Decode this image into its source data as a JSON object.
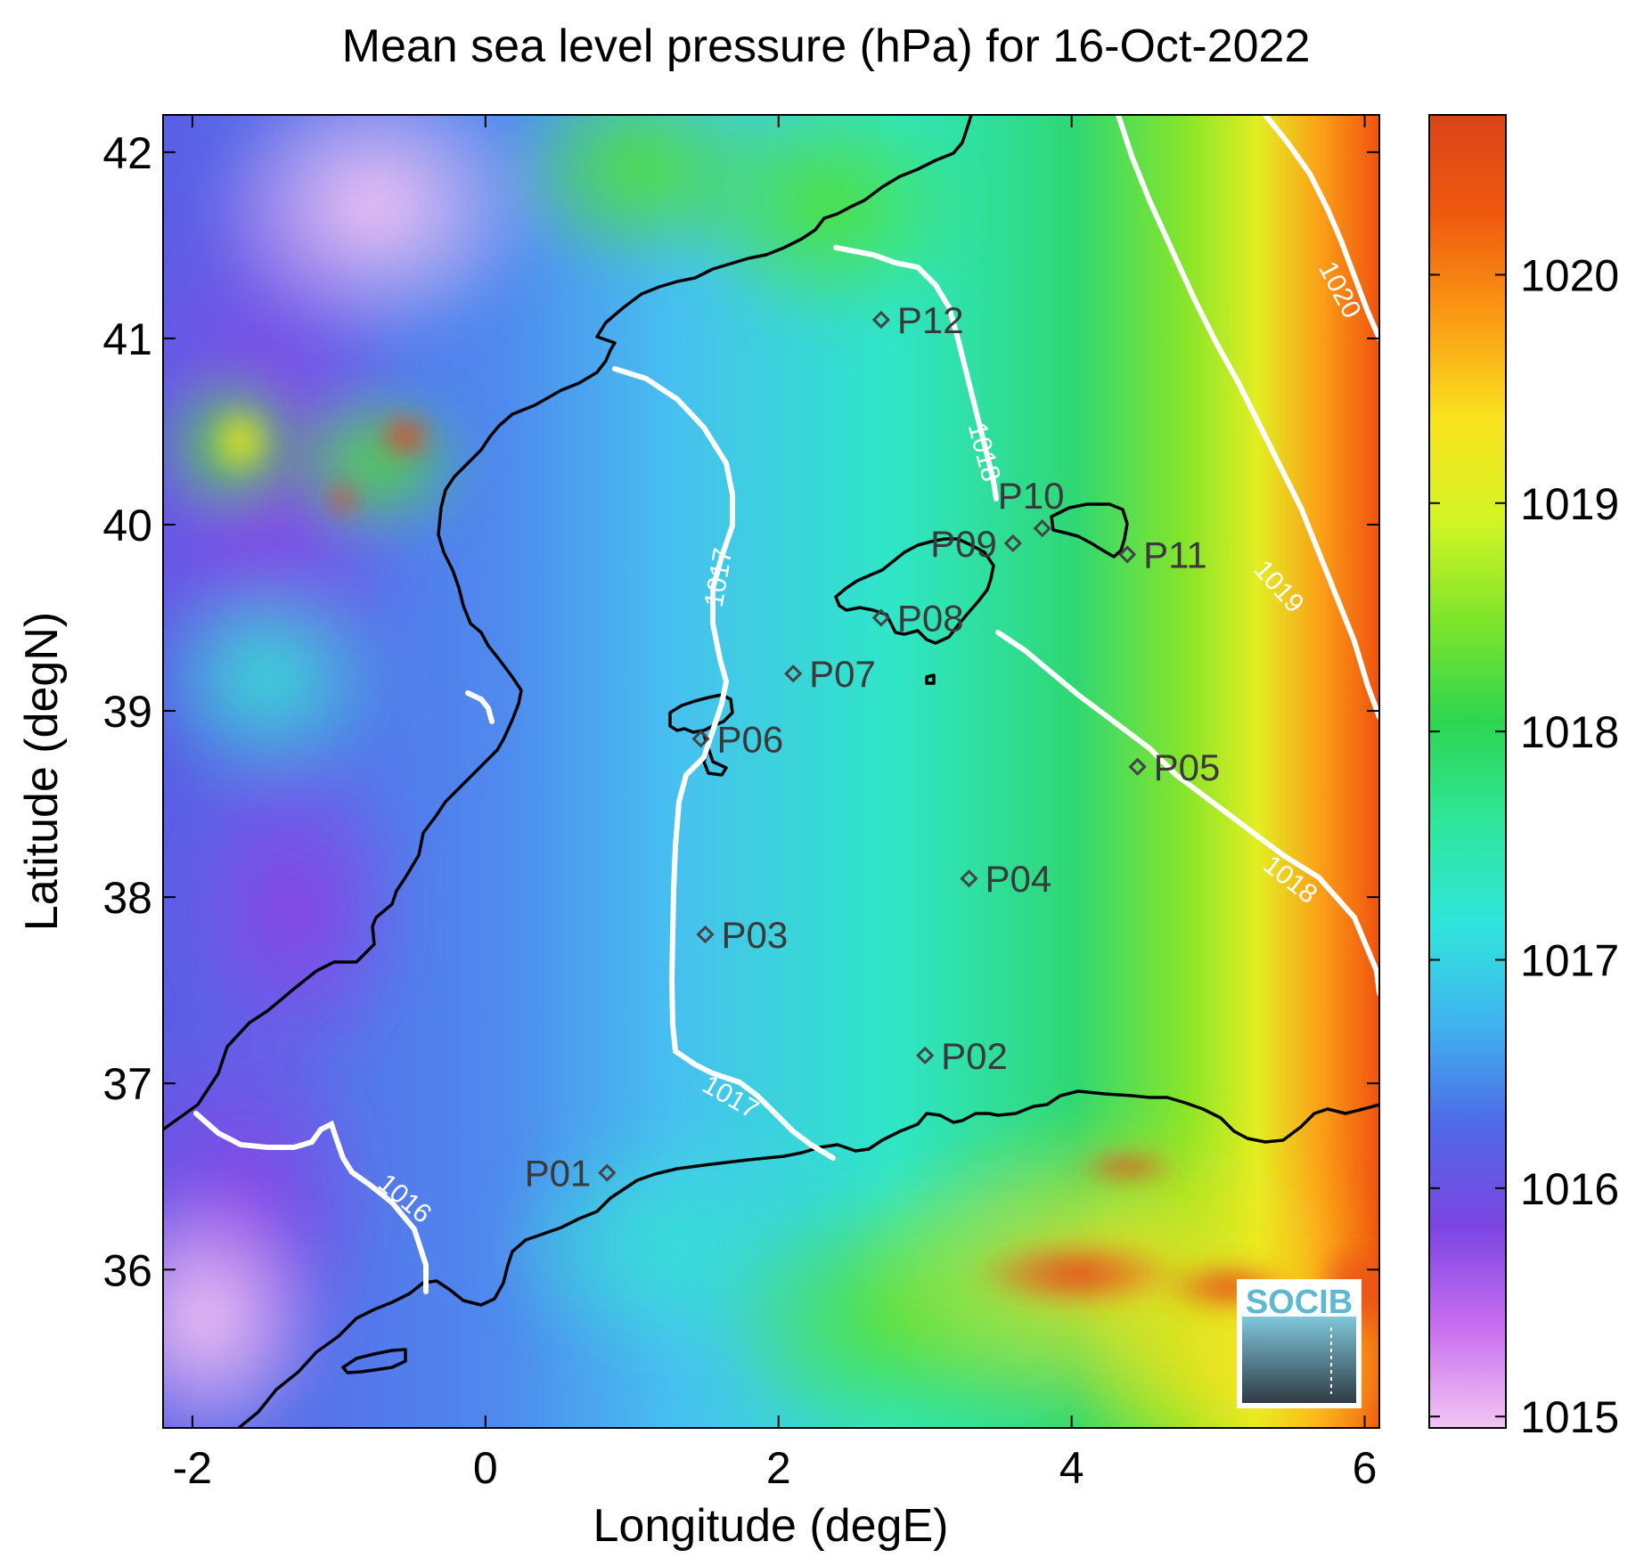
{
  "title": "Mean sea level pressure (hPa) for 16-Oct-2022",
  "map": {
    "xlabel": "Longitude (degE)",
    "ylabel": "Latitude (degN)",
    "xlim": [
      -2.2,
      6.1
    ],
    "ylim": [
      35.15,
      42.2
    ],
    "xticks": [
      -2,
      0,
      2,
      4,
      6
    ],
    "yticks": [
      36,
      37,
      38,
      39,
      40,
      41,
      42
    ]
  },
  "colorbar": {
    "ticks": [
      1015,
      1016,
      1017,
      1018,
      1019,
      1020
    ],
    "range": [
      1014.95,
      1020.7
    ],
    "colors": [
      "#f2c6f3",
      "#c86ef0",
      "#7b45e2",
      "#4f6ae8",
      "#3fb4ee",
      "#2fe6dc",
      "#2fe79a",
      "#2dd64f",
      "#7ee52a",
      "#d4f524",
      "#f9e31e",
      "#fb9b14",
      "#f05a0e",
      "#d94418"
    ]
  },
  "stations": [
    {
      "name": "P01",
      "lon": 0.83,
      "lat": 36.52,
      "side": "left"
    },
    {
      "name": "P02",
      "lon": 3.0,
      "lat": 37.15,
      "side": "right"
    },
    {
      "name": "P03",
      "lon": 1.5,
      "lat": 37.8,
      "side": "right"
    },
    {
      "name": "P04",
      "lon": 3.3,
      "lat": 38.1,
      "side": "right"
    },
    {
      "name": "P05",
      "lon": 4.45,
      "lat": 38.7,
      "side": "right"
    },
    {
      "name": "P06",
      "lon": 1.47,
      "lat": 38.85,
      "side": "right"
    },
    {
      "name": "P07",
      "lon": 2.1,
      "lat": 39.2,
      "side": "right"
    },
    {
      "name": "P08",
      "lon": 2.7,
      "lat": 39.5,
      "side": "right"
    },
    {
      "name": "P09",
      "lon": 3.6,
      "lat": 39.9,
      "side": "left"
    },
    {
      "name": "P10",
      "lon": 3.8,
      "lat": 39.98,
      "side": "up"
    },
    {
      "name": "P11",
      "lon": 4.38,
      "lat": 39.84,
      "side": "right"
    },
    {
      "name": "P12",
      "lon": 2.7,
      "lat": 41.1,
      "side": "right"
    }
  ],
  "contour_labels": {
    "c1016": "1016",
    "c1017a": "1017",
    "c1017b": "1017",
    "c1018a": "1018",
    "c1018b": "1018",
    "c1019": "1019",
    "c1020": "1020"
  },
  "logo": {
    "text": "SOCIB"
  }
}
